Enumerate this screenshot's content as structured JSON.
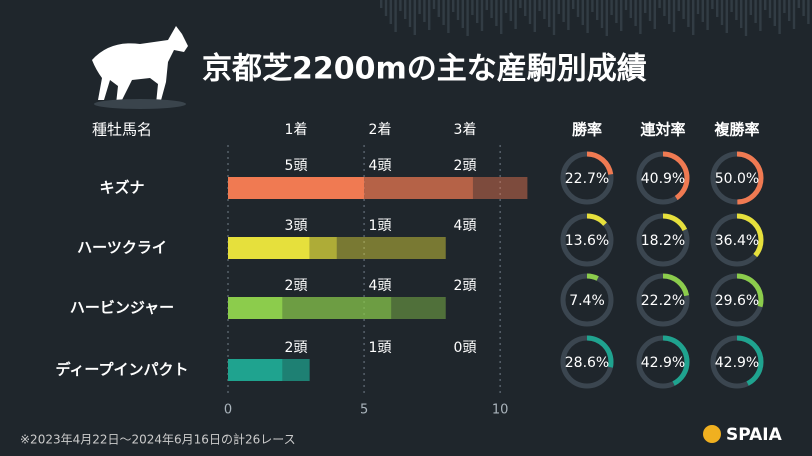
{
  "header": {
    "title": "京都芝2200mの主な産駒別成績"
  },
  "chart_data": {
    "type": "bar",
    "stacked": true,
    "orientation": "horizontal",
    "category_label": "種牡馬名",
    "categories": [
      "キズナ",
      "ハーツクライ",
      "ハービンジャー",
      "ディープインパクト"
    ],
    "colors": [
      "#f07a52",
      "#e6e03c",
      "#8ccc4c",
      "#1fa38f"
    ],
    "series": [
      {
        "name": "1着",
        "values": [
          5,
          3,
          2,
          2
        ],
        "value_labels": [
          "5頭",
          "3頭",
          "2頭",
          "2頭"
        ]
      },
      {
        "name": "2着",
        "values": [
          4,
          1,
          4,
          1
        ],
        "value_labels": [
          "4頭",
          "1頭",
          "4頭",
          "1頭"
        ]
      },
      {
        "name": "3着",
        "values": [
          2,
          4,
          2,
          0
        ],
        "value_labels": [
          "2頭",
          "4頭",
          "2頭",
          "0頭"
        ]
      }
    ],
    "xlim": [
      0,
      11.5
    ],
    "xticks": [
      0,
      5,
      10
    ],
    "grid": true
  },
  "rates": {
    "type": "donut",
    "columns": [
      "勝率",
      "連対率",
      "複勝率"
    ],
    "values": [
      [
        22.7,
        40.9,
        50.0
      ],
      [
        13.6,
        18.2,
        36.4
      ],
      [
        7.4,
        22.2,
        29.6
      ],
      [
        28.6,
        42.9,
        42.9
      ]
    ],
    "value_labels": [
      [
        "22.7%",
        "40.9%",
        "50.0%"
      ],
      [
        "13.6%",
        "18.2%",
        "36.4%"
      ],
      [
        "7.4%",
        "22.2%",
        "29.6%"
      ],
      [
        "28.6%",
        "42.9%",
        "42.9%"
      ]
    ]
  },
  "footnote": "※2023年4月22日～2024年6月16日の計26レース",
  "logo": "SPAIA"
}
